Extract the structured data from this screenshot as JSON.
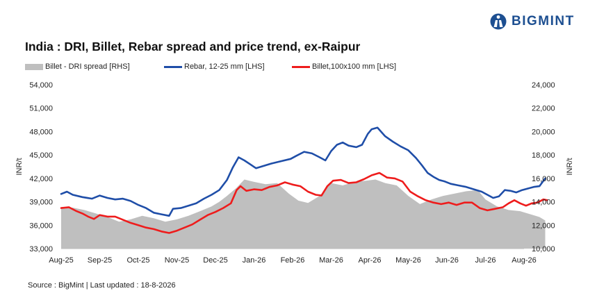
{
  "brand": {
    "name": "BIGMINT",
    "logo_icon": "bigmint-logo-icon",
    "color": "#1d4f91"
  },
  "source": "Source : BigMint | Last updated : 18-8-2026",
  "chart_data": {
    "type": "line",
    "title": "India : DRI, Billet, Rebar spread and price trend, ex-Raipur",
    "categories": [
      "Aug-25",
      "Sep-25",
      "Oct-25",
      "Nov-25",
      "Dec-25",
      "Jan-26",
      "Feb-26",
      "Mar-26",
      "Apr-26",
      "May-26",
      "Jun-26",
      "Jul-26",
      "Aug-26"
    ],
    "ylabel_left": "INR/t",
    "ylabel_right": "INR/t",
    "ylim_left": [
      33000,
      54000
    ],
    "yticks_left": [
      "33,000",
      "36,000",
      "39,000",
      "42,000",
      "45,000",
      "48,000",
      "51,000",
      "54,000"
    ],
    "ylim_right": [
      10000,
      24000
    ],
    "yticks_right": [
      "10,000",
      "12,000",
      "14,000",
      "16,000",
      "18,000",
      "20,000",
      "22,000",
      "24,000"
    ],
    "grid": false,
    "legend_position": "top-left",
    "series": [
      {
        "name": "Billet - DRI spread  [RHS]",
        "type": "area",
        "axis": "right",
        "color": "#bfbfbf",
        "points": [
          [
            0,
            13.4
          ],
          [
            0.3,
            13.5
          ],
          [
            0.6,
            13.3
          ],
          [
            0.9,
            13.0
          ],
          [
            1.2,
            12.7
          ],
          [
            1.5,
            12.3
          ],
          [
            1.8,
            12.5
          ],
          [
            2.1,
            12.8
          ],
          [
            2.4,
            12.6
          ],
          [
            2.7,
            12.3
          ],
          [
            3.0,
            12.5
          ],
          [
            3.3,
            12.8
          ],
          [
            3.6,
            13.2
          ],
          [
            3.9,
            13.6
          ],
          [
            4.1,
            14.0
          ],
          [
            4.3,
            14.5
          ],
          [
            4.55,
            15.2
          ],
          [
            4.75,
            15.9
          ],
          [
            5.0,
            15.7
          ],
          [
            5.3,
            15.5
          ],
          [
            5.6,
            15.6
          ],
          [
            5.9,
            14.7
          ],
          [
            6.15,
            14.1
          ],
          [
            6.4,
            13.9
          ],
          [
            6.7,
            14.5
          ],
          [
            7.0,
            15.6
          ],
          [
            7.3,
            15.4
          ],
          [
            7.6,
            15.7
          ],
          [
            7.9,
            15.8
          ],
          [
            8.15,
            15.9
          ],
          [
            8.4,
            15.6
          ],
          [
            8.7,
            15.4
          ],
          [
            9.0,
            14.5
          ],
          [
            9.3,
            13.8
          ],
          [
            9.6,
            14.2
          ],
          [
            9.9,
            14.5
          ],
          [
            10.2,
            14.7
          ],
          [
            10.5,
            14.9
          ],
          [
            10.8,
            15.0
          ],
          [
            11.0,
            14.2
          ],
          [
            11.3,
            13.6
          ],
          [
            11.6,
            13.3
          ],
          [
            11.9,
            13.2
          ],
          [
            12.2,
            12.9
          ],
          [
            12.4,
            12.7
          ],
          [
            12.55,
            12.4
          ]
        ]
      },
      {
        "name": "Rebar, 12-25 mm [LHS]",
        "type": "line",
        "axis": "left",
        "color": "#1f4ea8",
        "points": [
          [
            0,
            40000
          ],
          [
            0.15,
            40300
          ],
          [
            0.3,
            39900
          ],
          [
            0.55,
            39600
          ],
          [
            0.8,
            39400
          ],
          [
            1.0,
            39800
          ],
          [
            1.2,
            39500
          ],
          [
            1.4,
            39300
          ],
          [
            1.6,
            39400
          ],
          [
            1.8,
            39100
          ],
          [
            2.0,
            38600
          ],
          [
            2.2,
            38200
          ],
          [
            2.4,
            37600
          ],
          [
            2.6,
            37400
          ],
          [
            2.8,
            37200
          ],
          [
            2.9,
            38100
          ],
          [
            3.1,
            38200
          ],
          [
            3.3,
            38500
          ],
          [
            3.5,
            38800
          ],
          [
            3.7,
            39400
          ],
          [
            3.9,
            39900
          ],
          [
            4.1,
            40500
          ],
          [
            4.3,
            41800
          ],
          [
            4.45,
            43400
          ],
          [
            4.6,
            44700
          ],
          [
            4.75,
            44300
          ],
          [
            4.9,
            43800
          ],
          [
            5.05,
            43300
          ],
          [
            5.25,
            43600
          ],
          [
            5.45,
            43900
          ],
          [
            5.7,
            44200
          ],
          [
            5.95,
            44500
          ],
          [
            6.1,
            44900
          ],
          [
            6.3,
            45400
          ],
          [
            6.5,
            45200
          ],
          [
            6.7,
            44700
          ],
          [
            6.85,
            44300
          ],
          [
            7.0,
            45500
          ],
          [
            7.15,
            46300
          ],
          [
            7.3,
            46600
          ],
          [
            7.45,
            46200
          ],
          [
            7.65,
            46000
          ],
          [
            7.8,
            46300
          ],
          [
            7.95,
            47700
          ],
          [
            8.05,
            48300
          ],
          [
            8.2,
            48500
          ],
          [
            8.4,
            47400
          ],
          [
            8.6,
            46700
          ],
          [
            8.8,
            46100
          ],
          [
            9.0,
            45600
          ],
          [
            9.2,
            44600
          ],
          [
            9.35,
            43700
          ],
          [
            9.5,
            42700
          ],
          [
            9.65,
            42200
          ],
          [
            9.8,
            41800
          ],
          [
            9.95,
            41600
          ],
          [
            10.1,
            41300
          ],
          [
            10.3,
            41100
          ],
          [
            10.5,
            40900
          ],
          [
            10.7,
            40600
          ],
          [
            10.9,
            40300
          ],
          [
            11.05,
            39900
          ],
          [
            11.2,
            39500
          ],
          [
            11.35,
            39700
          ],
          [
            11.5,
            40500
          ],
          [
            11.65,
            40400
          ],
          [
            11.8,
            40200
          ],
          [
            11.95,
            40500
          ],
          [
            12.1,
            40700
          ],
          [
            12.25,
            40900
          ],
          [
            12.4,
            41000
          ],
          [
            12.55,
            42000
          ]
        ]
      },
      {
        "name": "Billet,100x100 mm [LHS]",
        "type": "line",
        "axis": "left",
        "color": "#ee1c1c",
        "points": [
          [
            0,
            38200
          ],
          [
            0.2,
            38300
          ],
          [
            0.4,
            37800
          ],
          [
            0.55,
            37500
          ],
          [
            0.7,
            37100
          ],
          [
            0.85,
            36800
          ],
          [
            1.0,
            37300
          ],
          [
            1.2,
            37100
          ],
          [
            1.4,
            37100
          ],
          [
            1.6,
            36700
          ],
          [
            1.8,
            36300
          ],
          [
            2.0,
            36000
          ],
          [
            2.2,
            35700
          ],
          [
            2.4,
            35500
          ],
          [
            2.6,
            35200
          ],
          [
            2.8,
            35000
          ],
          [
            3.0,
            35300
          ],
          [
            3.2,
            35700
          ],
          [
            3.4,
            36100
          ],
          [
            3.6,
            36700
          ],
          [
            3.8,
            37300
          ],
          [
            4.0,
            37700
          ],
          [
            4.2,
            38200
          ],
          [
            4.4,
            38800
          ],
          [
            4.55,
            40500
          ],
          [
            4.65,
            41000
          ],
          [
            4.8,
            40400
          ],
          [
            5.0,
            40600
          ],
          [
            5.2,
            40500
          ],
          [
            5.4,
            40900
          ],
          [
            5.6,
            41100
          ],
          [
            5.8,
            41500
          ],
          [
            6.0,
            41200
          ],
          [
            6.2,
            41000
          ],
          [
            6.4,
            40300
          ],
          [
            6.6,
            39900
          ],
          [
            6.75,
            39800
          ],
          [
            6.9,
            41000
          ],
          [
            7.05,
            41700
          ],
          [
            7.25,
            41800
          ],
          [
            7.45,
            41400
          ],
          [
            7.65,
            41500
          ],
          [
            7.85,
            41900
          ],
          [
            8.05,
            42400
          ],
          [
            8.25,
            42700
          ],
          [
            8.45,
            42100
          ],
          [
            8.65,
            42000
          ],
          [
            8.85,
            41600
          ],
          [
            9.05,
            40300
          ],
          [
            9.25,
            39700
          ],
          [
            9.45,
            39200
          ],
          [
            9.65,
            38900
          ],
          [
            9.85,
            38700
          ],
          [
            10.05,
            38900
          ],
          [
            10.25,
            38600
          ],
          [
            10.45,
            38900
          ],
          [
            10.65,
            38900
          ],
          [
            10.85,
            38200
          ],
          [
            11.05,
            37900
          ],
          [
            11.25,
            38100
          ],
          [
            11.45,
            38300
          ],
          [
            11.6,
            38800
          ],
          [
            11.75,
            39200
          ],
          [
            11.9,
            38800
          ],
          [
            12.05,
            38500
          ],
          [
            12.2,
            38800
          ],
          [
            12.35,
            38900
          ],
          [
            12.5,
            39300
          ],
          [
            12.6,
            39200
          ]
        ]
      }
    ]
  }
}
